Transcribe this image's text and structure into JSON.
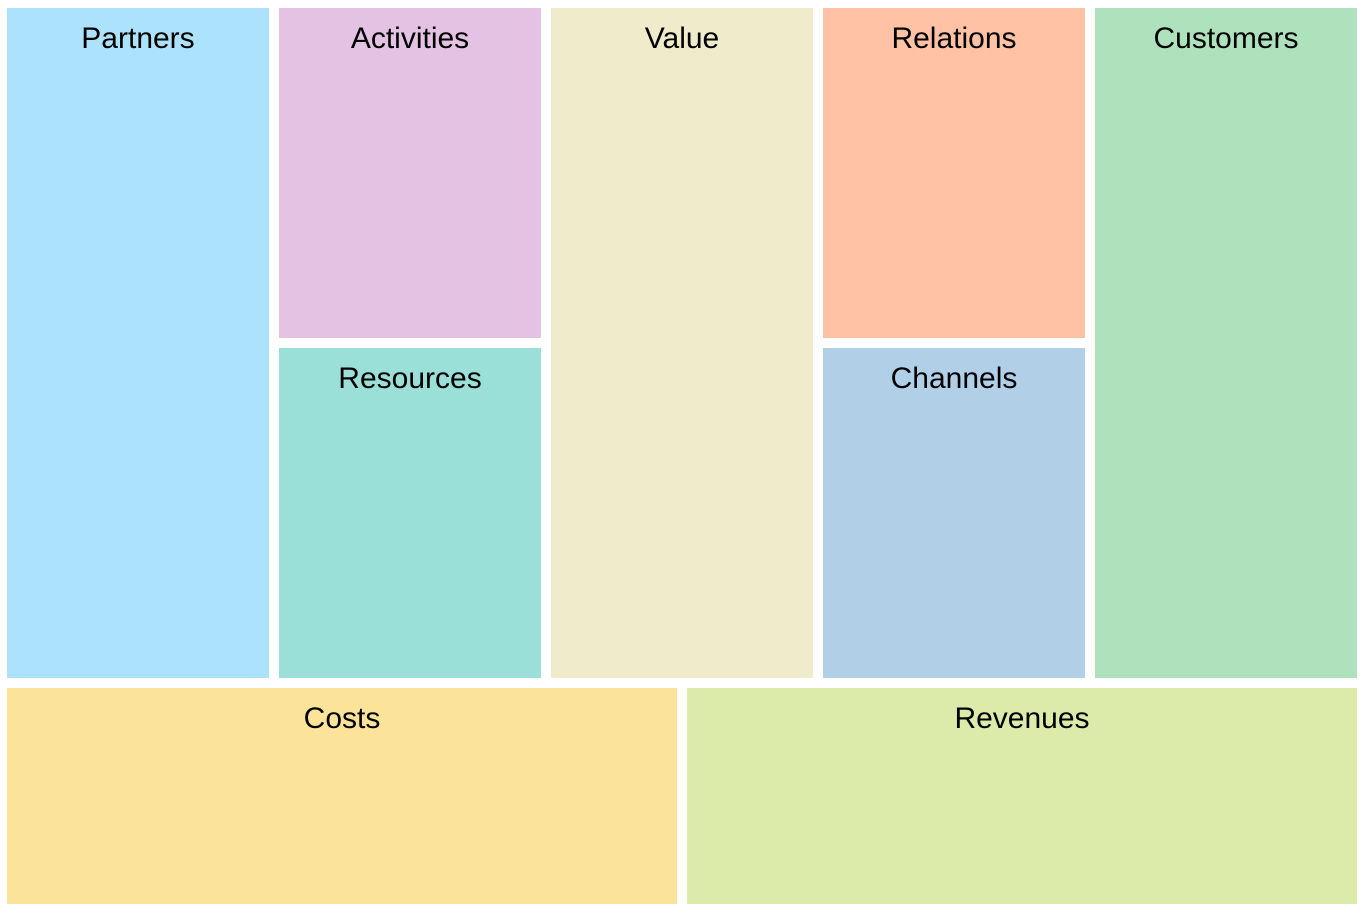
{
  "blocks": {
    "partners": {
      "label": "Partners",
      "color": "#ade2fd"
    },
    "activities": {
      "label": "Activities",
      "color": "#e3c2e3"
    },
    "resources": {
      "label": "Resources",
      "color": "#9adfd8"
    },
    "value": {
      "label": "Value",
      "color": "#f0ebca"
    },
    "relations": {
      "label": "Relations",
      "color": "#ffc2a4"
    },
    "channels": {
      "label": "Channels",
      "color": "#b1d0e8"
    },
    "customers": {
      "label": "Customers",
      "color": "#ade2bd"
    },
    "costs": {
      "label": "Costs",
      "color": "#fbe499"
    },
    "revenues": {
      "label": "Revenues",
      "color": "#dcebaa"
    }
  }
}
